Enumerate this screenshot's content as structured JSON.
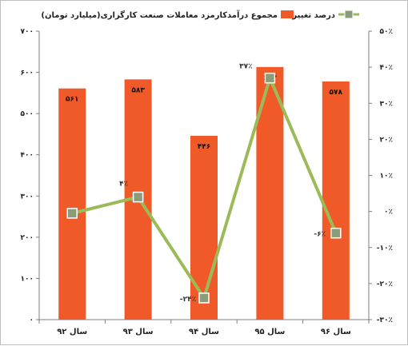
{
  "chart_data": {
    "type": "bar",
    "categories": [
      "سال ۹۲",
      "سال ۹۳",
      "سال ۹۴",
      "سال ۹۵",
      "سال ۹۶"
    ],
    "series": [
      {
        "name": "مجموع درآمدکارمزد معاملات صنعت کارگزاری(میلیارد تومان)",
        "type": "bar",
        "axis": "left",
        "values": [
          561,
          583,
          446,
          613,
          578
        ],
        "value_labels": [
          "۵۶۱",
          "۵۸۳",
          "۴۴۶",
          "۶۱۳",
          "۵۷۸"
        ],
        "color": "#f05a28"
      },
      {
        "name": "درصد تغییرات",
        "type": "line",
        "axis": "right",
        "values": [
          -0.5,
          4,
          -24,
          37,
          -6
        ],
        "value_labels": [
          "",
          "۴٪",
          "-۲۴٪",
          "۳۷٪",
          "-۶٪"
        ],
        "color": "#9bbb59"
      }
    ],
    "ylim_left": [
      0,
      700
    ],
    "yticks_left": [
      0,
      100,
      200,
      300,
      400,
      500,
      600,
      700
    ],
    "yticks_left_labels": [
      "۰",
      "۱۰۰",
      "۲۰۰",
      "۳۰۰",
      "۴۰۰",
      "۵۰۰",
      "۶۰۰",
      "۷۰۰"
    ],
    "ylim_right": [
      -30,
      50
    ],
    "yticks_right": [
      -30,
      -20,
      -10,
      0,
      10,
      20,
      30,
      40,
      50
    ],
    "yticks_right_labels": [
      "-۳۰٪",
      "-۲۰٪",
      "-۱۰٪",
      "۰٪",
      "۱۰٪",
      "۲۰٪",
      "۳۰٪",
      "۴۰٪",
      "۵۰٪"
    ],
    "grid": false,
    "legend_position": "top"
  }
}
